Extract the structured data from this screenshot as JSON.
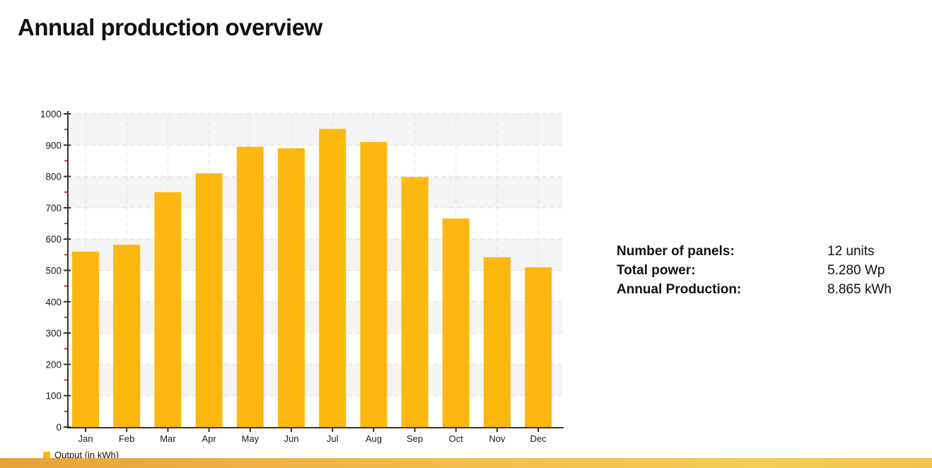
{
  "page": {
    "title": "Annual production overview"
  },
  "chart_data": {
    "type": "bar",
    "title": "Annual production overview",
    "categories": [
      "Jan",
      "Feb",
      "Mar",
      "Apr",
      "May",
      "Jun",
      "Jul",
      "Aug",
      "Sep",
      "Oct",
      "Nov",
      "Dec"
    ],
    "series": [
      {
        "name": "Output (in kWh)",
        "values": [
          560,
          582,
          750,
          810,
          895,
          890,
          952,
          910,
          798,
          666,
          542,
          510
        ]
      }
    ],
    "xlabel": "",
    "ylabel": "",
    "ylim": [
      0,
      1000
    ],
    "y_ticks": [
      0,
      100,
      200,
      300,
      400,
      500,
      600,
      700,
      800,
      900,
      1000
    ],
    "y_minor_tick_step": 50,
    "grid": "dashed horizontal and vertical gridlines, alternating gray/white horizontal bands",
    "legend_position": "bottom-left",
    "legend_label": "Output (in kWh)"
  },
  "legend": {
    "label": "Output (in kWh)"
  },
  "info_panel": {
    "rows": [
      {
        "label": "Number of panels:",
        "value": "12 units"
      },
      {
        "label": "Total power:",
        "value": "5.280 Wp"
      },
      {
        "label": "Annual Production:",
        "value": "8.865 kWh"
      }
    ]
  },
  "colors": {
    "bar": "#FCB80E",
    "band_gray": "#F4F4F4",
    "grid_dash": "#DCDCDC",
    "axis": "#333333",
    "tick_label": "#1A1A1A",
    "minor_tick_red": "#C0392B",
    "strip_left": "#E7A23A",
    "strip_mid": "#F0B846",
    "strip_right": "#F5CD55",
    "strip_end": "#F1C24C"
  }
}
